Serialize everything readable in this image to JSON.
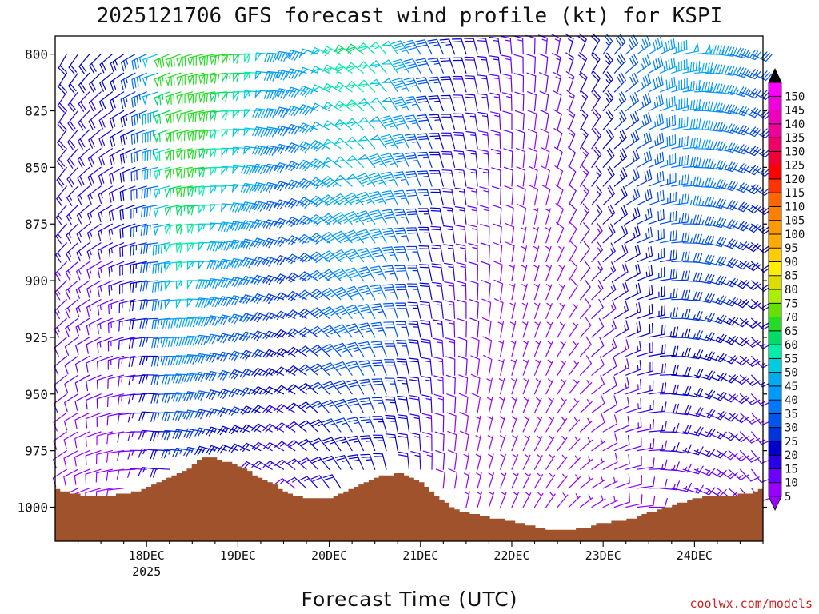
{
  "chart_data": {
    "type": "wind-barb-time-height",
    "title": "2025121706 GFS forecast wind profile (kt) for KSPI",
    "xlabel": "Forecast Time (UTC)",
    "ylabel": "",
    "x_ticks": [
      "18DEC",
      "19DEC",
      "20DEC",
      "21DEC",
      "22DEC",
      "23DEC",
      "24DEC"
    ],
    "x_tick_year": "2025",
    "x_range_days": [
      17.0,
      24.75
    ],
    "y_ticks": [
      800,
      825,
      850,
      875,
      900,
      925,
      950,
      975,
      1000
    ],
    "y_range_hpa": [
      792,
      1015
    ],
    "colorbar_levels": [
      5,
      10,
      15,
      20,
      25,
      30,
      35,
      40,
      45,
      50,
      55,
      60,
      65,
      70,
      75,
      80,
      85,
      90,
      95,
      100,
      105,
      110,
      115,
      120,
      125,
      130,
      135,
      140,
      145,
      150
    ],
    "colorbar_colors": [
      "#9900ff",
      "#6a00ff",
      "#2a00e6",
      "#0000cc",
      "#0033dd",
      "#0055ee",
      "#0077ff",
      "#0099ff",
      "#00aaee",
      "#00ccdd",
      "#00eeaa",
      "#00dd66",
      "#22dd22",
      "#66e000",
      "#aaee00",
      "#dddd00",
      "#ffee00",
      "#ffcc00",
      "#ffaa00",
      "#ff9900",
      "#ff8000",
      "#ff6600",
      "#ff3300",
      "#ff0000",
      "#ee0033",
      "#ee0066",
      "#ee0099",
      "#ee00bb",
      "#ee00dd",
      "#ff00ff"
    ],
    "surface_pressure_hpa": [
      [
        17.0,
        992
      ],
      [
        17.3,
        995
      ],
      [
        17.6,
        995
      ],
      [
        17.9,
        993
      ],
      [
        18.1,
        990
      ],
      [
        18.3,
        986
      ],
      [
        18.5,
        982
      ],
      [
        18.65,
        977
      ],
      [
        18.8,
        979
      ],
      [
        19.0,
        981
      ],
      [
        19.2,
        986
      ],
      [
        19.4,
        990
      ],
      [
        19.6,
        995
      ],
      [
        19.8,
        996
      ],
      [
        20.0,
        996
      ],
      [
        20.2,
        993
      ],
      [
        20.4,
        989
      ],
      [
        20.6,
        986
      ],
      [
        20.8,
        985
      ],
      [
        21.0,
        989
      ],
      [
        21.2,
        996
      ],
      [
        21.4,
        1001
      ],
      [
        21.6,
        1003
      ],
      [
        21.8,
        1005
      ],
      [
        22.0,
        1006
      ],
      [
        22.2,
        1008
      ],
      [
        22.4,
        1010
      ],
      [
        22.6,
        1010
      ],
      [
        22.8,
        1009
      ],
      [
        23.0,
        1007
      ],
      [
        23.2,
        1006
      ],
      [
        23.4,
        1004
      ],
      [
        23.6,
        1001
      ],
      [
        23.8,
        999
      ],
      [
        24.0,
        996
      ],
      [
        24.2,
        995
      ],
      [
        24.4,
        995
      ],
      [
        24.6,
        994
      ],
      [
        24.75,
        992
      ]
    ],
    "barbs": "GFS wind barbs every 3 h at 25 pressure levels (800–1000 hPa), colored by speed (5–70 kt)"
  },
  "credit": "coolwx.com/models"
}
